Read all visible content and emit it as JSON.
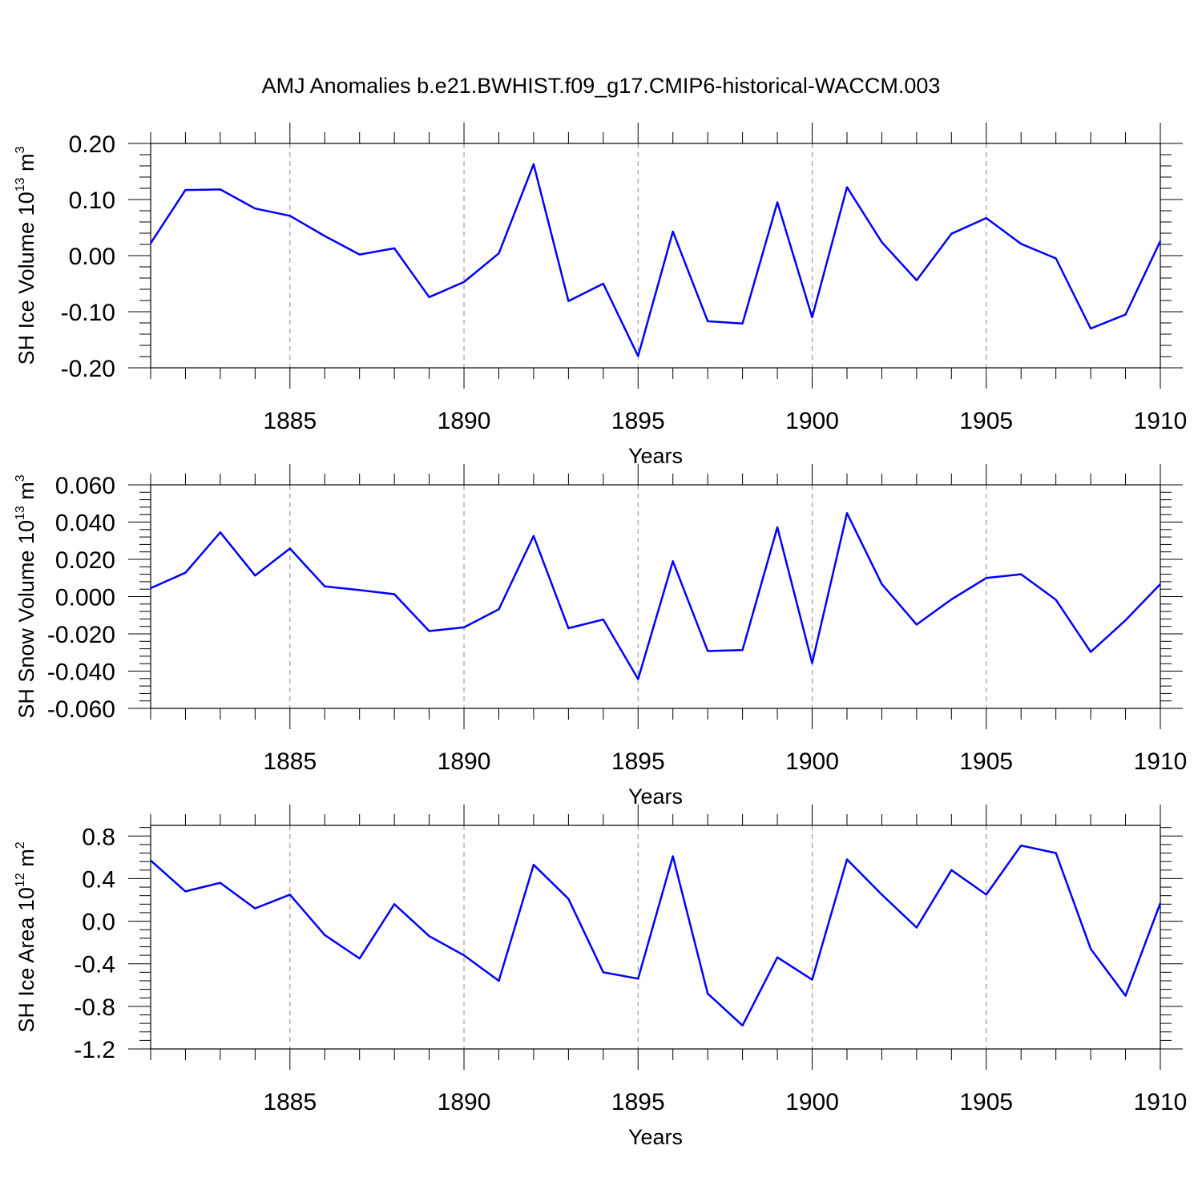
{
  "title": "AMJ Anomalies b.e21.BWHIST.f09_g17.CMIP6-historical-WACCM.003",
  "colors": {
    "line": "#0000ff",
    "grid": "#888888",
    "axis": "#000000"
  },
  "chart_data": [
    {
      "type": "line",
      "name": "ice-volume",
      "ylabel_main": "SH Ice Volume 10",
      "ylabel_exp": "13",
      "ylabel_unit": " m",
      "ylabel_unit_exp": "3",
      "xlabel": "Years",
      "xlim": [
        1881,
        1910
      ],
      "ylim": [
        -0.2,
        0.2
      ],
      "yticks": [
        -0.2,
        -0.1,
        0.0,
        0.1,
        0.2
      ],
      "ytick_labels": [
        "-0.20",
        "-0.10",
        "0.00",
        "0.10",
        "0.20"
      ],
      "xticks": [
        1885,
        1890,
        1895,
        1900,
        1905,
        1910
      ],
      "xtick_labels": [
        "1885",
        "1890",
        "1895",
        "1900",
        "1905",
        "1910"
      ],
      "x": [
        1881,
        1882,
        1883,
        1884,
        1885,
        1886,
        1887,
        1888,
        1889,
        1890,
        1891,
        1892,
        1893,
        1894,
        1895,
        1896,
        1897,
        1898,
        1899,
        1900,
        1901,
        1902,
        1903,
        1904,
        1905,
        1906,
        1907,
        1908,
        1909,
        1910
      ],
      "values": [
        0.022,
        0.117,
        0.118,
        0.084,
        0.071,
        0.035,
        0.002,
        0.013,
        -0.074,
        -0.047,
        0.004,
        0.163,
        -0.081,
        -0.05,
        -0.179,
        0.043,
        -0.117,
        -0.121,
        0.095,
        -0.11,
        0.122,
        0.024,
        -0.044,
        0.039,
        0.067,
        0.021,
        -0.005,
        -0.13,
        -0.105,
        0.026
      ]
    },
    {
      "type": "line",
      "name": "snow-volume",
      "ylabel_main": "SH Snow Volume 10",
      "ylabel_exp": "13",
      "ylabel_unit": " m",
      "ylabel_unit_exp": "3",
      "xlabel": "Years",
      "xlim": [
        1881,
        1910
      ],
      "ylim": [
        -0.06,
        0.06
      ],
      "yticks": [
        -0.06,
        -0.04,
        -0.02,
        0.0,
        0.02,
        0.04,
        0.06
      ],
      "ytick_labels": [
        "-0.060",
        "-0.040",
        "-0.020",
        "0.000",
        "0.020",
        "0.040",
        "0.060"
      ],
      "xticks": [
        1885,
        1890,
        1895,
        1900,
        1905,
        1910
      ],
      "xtick_labels": [
        "1885",
        "1890",
        "1895",
        "1900",
        "1905",
        "1910"
      ],
      "x": [
        1881,
        1882,
        1883,
        1884,
        1885,
        1886,
        1887,
        1888,
        1889,
        1890,
        1891,
        1892,
        1893,
        1894,
        1895,
        1896,
        1897,
        1898,
        1899,
        1900,
        1901,
        1902,
        1903,
        1904,
        1905,
        1906,
        1907,
        1908,
        1909,
        1910
      ],
      "values": [
        0.0045,
        0.0128,
        0.0345,
        0.0113,
        0.0258,
        0.0055,
        0.0035,
        0.0013,
        -0.0185,
        -0.0165,
        -0.0068,
        0.0325,
        -0.017,
        -0.0123,
        -0.0443,
        0.019,
        -0.0292,
        -0.0287,
        0.0372,
        -0.0357,
        0.0448,
        0.0067,
        -0.015,
        -0.0015,
        0.01,
        0.012,
        -0.0017,
        -0.0297,
        -0.0127,
        0.0067
      ]
    },
    {
      "type": "line",
      "name": "ice-area",
      "ylabel_main": "SH Ice Area 10",
      "ylabel_exp": "12",
      "ylabel_unit": " m",
      "ylabel_unit_exp": "2",
      "xlabel": "Years",
      "xlim": [
        1881,
        1910
      ],
      "ylim": [
        -1.2,
        0.9
      ],
      "yticks": [
        -1.2,
        -0.8,
        -0.4,
        0.0,
        0.4,
        0.8
      ],
      "ytick_labels": [
        "-1.2",
        "-0.8",
        "-0.4",
        "0.0",
        "0.4",
        "0.8"
      ],
      "xticks": [
        1885,
        1890,
        1895,
        1900,
        1905,
        1910
      ],
      "xtick_labels": [
        "1885",
        "1890",
        "1895",
        "1900",
        "1905",
        "1910"
      ],
      "x": [
        1881,
        1882,
        1883,
        1884,
        1885,
        1886,
        1887,
        1888,
        1889,
        1890,
        1891,
        1892,
        1893,
        1894,
        1895,
        1896,
        1897,
        1898,
        1899,
        1900,
        1901,
        1902,
        1903,
        1904,
        1905,
        1906,
        1907,
        1908,
        1909,
        1910
      ],
      "values": [
        0.57,
        0.28,
        0.36,
        0.12,
        0.25,
        -0.13,
        -0.35,
        0.16,
        -0.14,
        -0.32,
        -0.56,
        0.53,
        0.21,
        -0.48,
        -0.54,
        0.61,
        -0.68,
        -0.98,
        -0.34,
        -0.55,
        0.58,
        0.25,
        -0.06,
        0.48,
        0.25,
        0.71,
        0.64,
        -0.26,
        -0.7,
        0.17
      ]
    }
  ]
}
